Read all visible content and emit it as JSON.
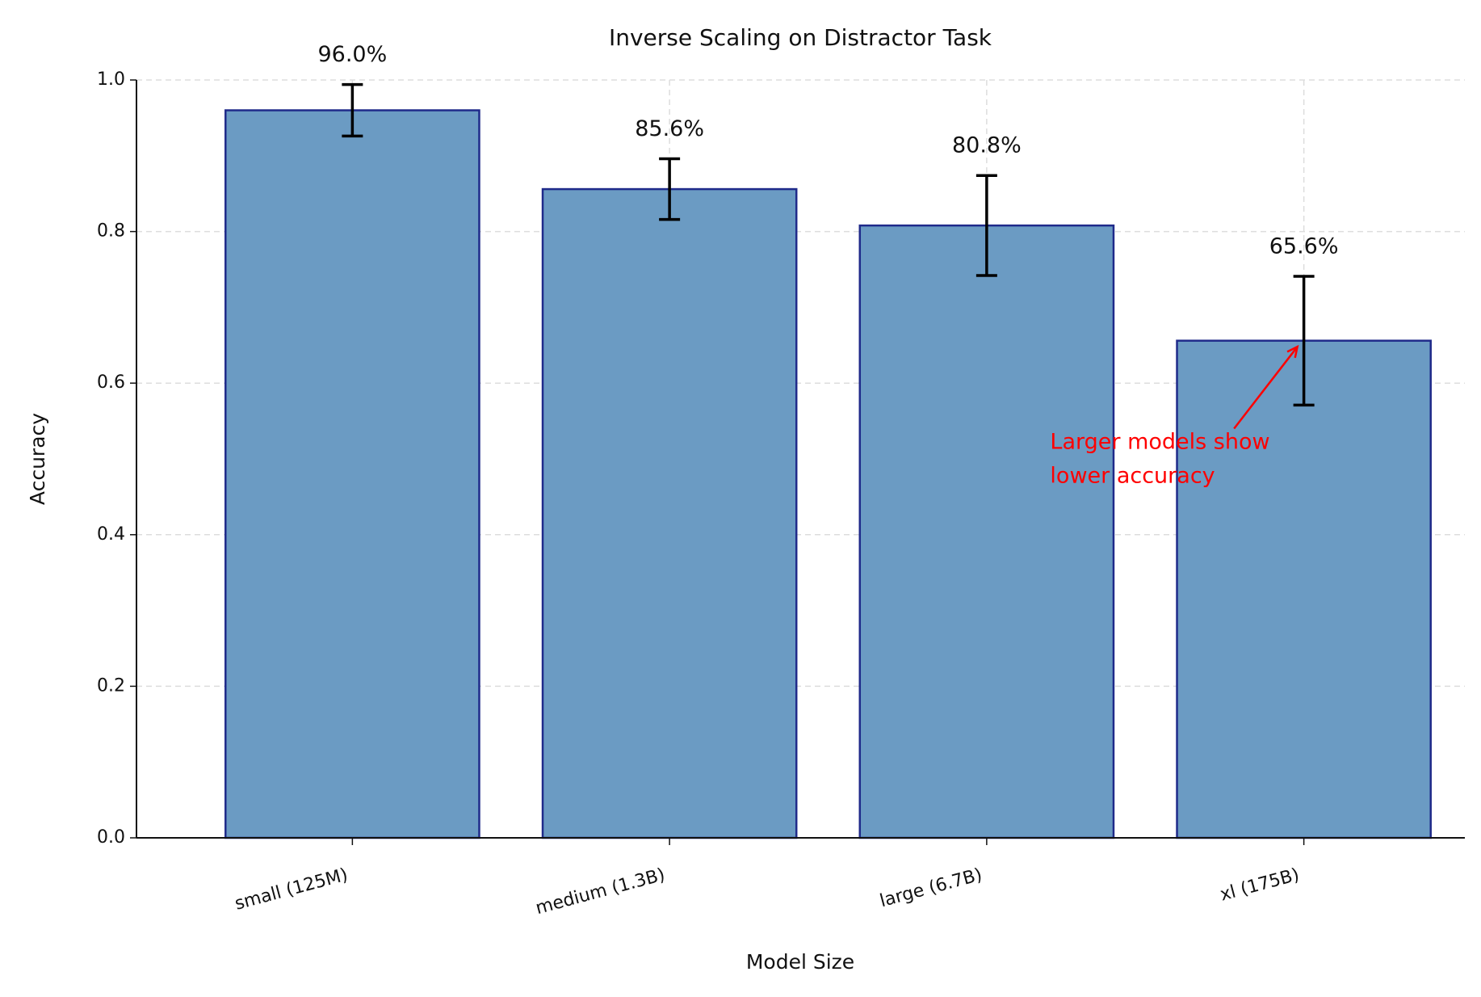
{
  "chart_data": {
    "type": "bar",
    "title": "Inverse Scaling on Distractor Task",
    "xlabel": "Model Size",
    "ylabel": "Accuracy",
    "categories": [
      "small (125M)",
      "medium (1.3B)",
      "large (6.7B)",
      "xl (175B)"
    ],
    "values": [
      0.96,
      0.856,
      0.808,
      0.656
    ],
    "value_labels": [
      "96.0%",
      "85.6%",
      "80.8%",
      "65.6%"
    ],
    "errors": [
      0.034,
      0.04,
      0.066,
      0.085
    ],
    "color": "#6b9bc3",
    "edgecolor": "#1f2a8a",
    "ylim": [
      0,
      1
    ],
    "yticks": [
      {
        "value": 0,
        "label": "0.0"
      },
      0.2,
      0.4,
      0.6,
      0.8,
      {
        "value": 1,
        "label": "1.0"
      }
    ],
    "grid": true,
    "annotation": [
      "Larger models show",
      "lower accuracy"
    ],
    "annotation_color": "#ff0000"
  }
}
